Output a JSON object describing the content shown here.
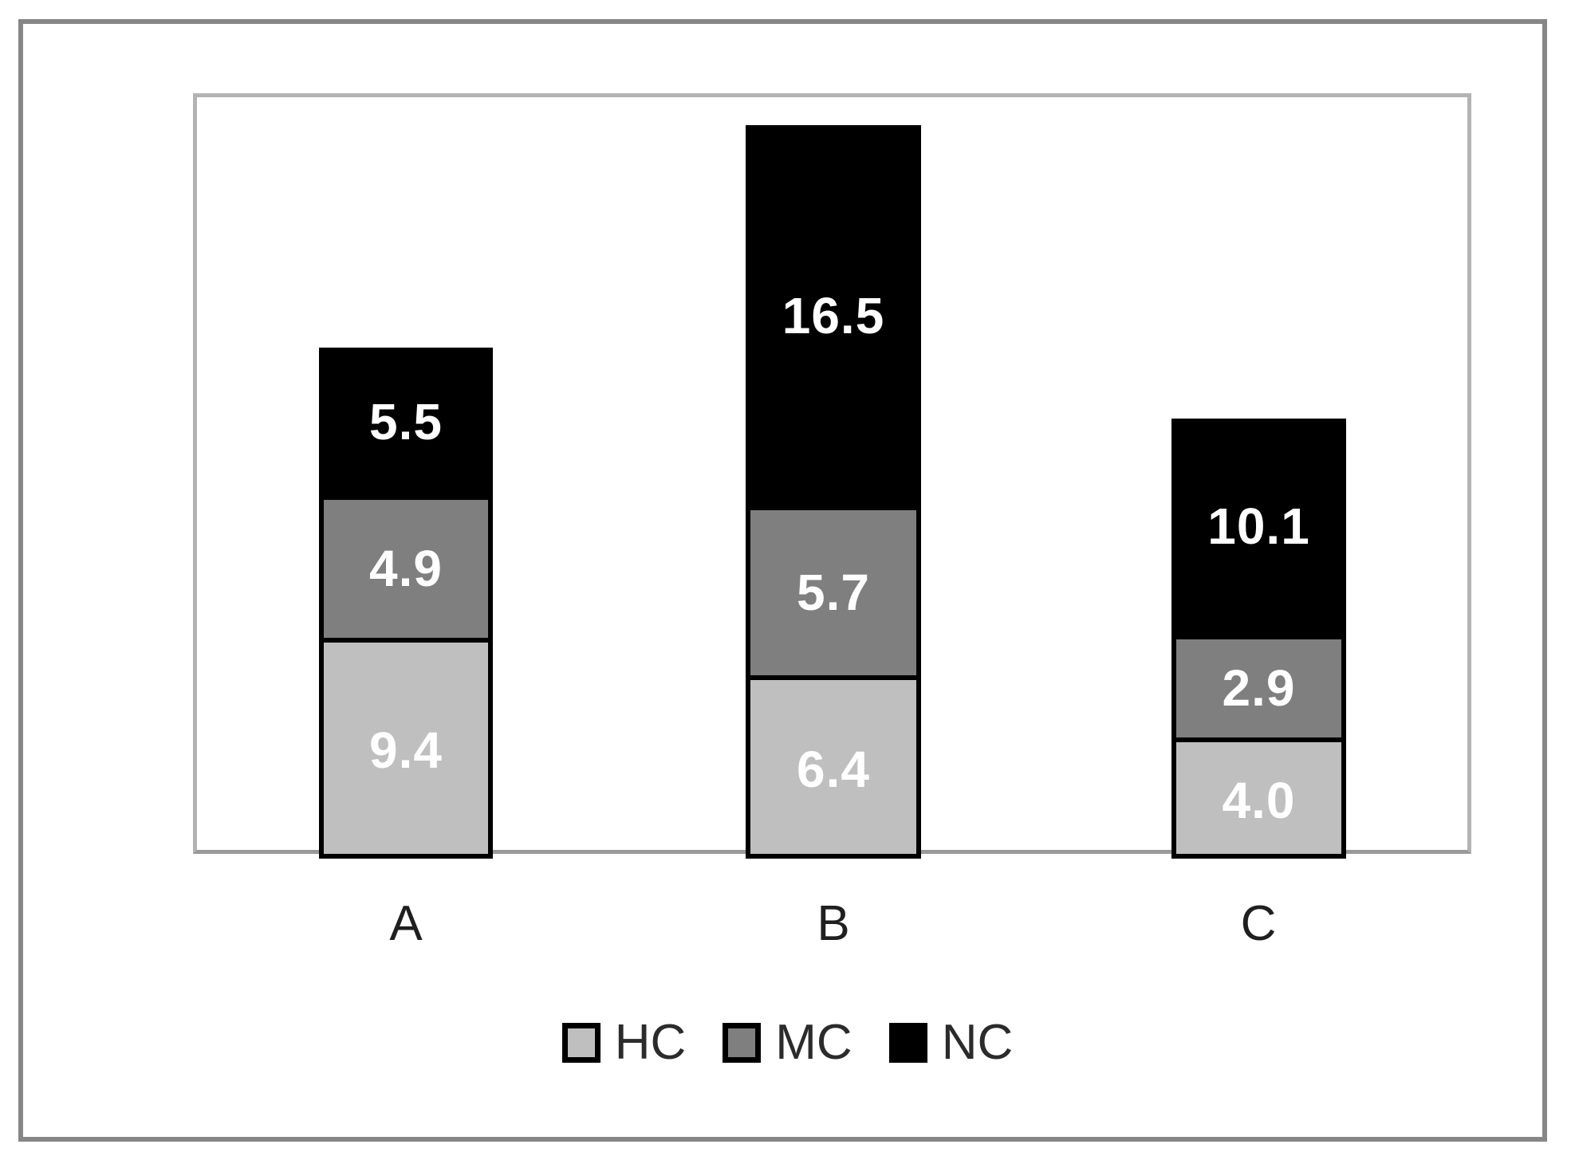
{
  "figure": {
    "background": "#ffffff",
    "outer_border_color": "#868686",
    "plot_border_color": "#b3b3b3",
    "axis_line_color": "#999999"
  },
  "chart_data": {
    "type": "bar",
    "stacked": true,
    "orientation": "vertical",
    "title": "",
    "xlabel": "",
    "ylabel": "",
    "categories": [
      "A",
      "B",
      "C"
    ],
    "series": [
      {
        "name": "HC",
        "color": "#bfbfbf",
        "values": [
          9.4,
          6.4,
          4.0
        ],
        "labels": [
          "9.4",
          "6.4",
          "4.0"
        ]
      },
      {
        "name": "MC",
        "color": "#7f7f7f",
        "values": [
          4.9,
          5.7,
          2.9
        ],
        "labels": [
          "4.9",
          "5.7",
          "2.9"
        ]
      },
      {
        "name": "NC",
        "color": "#000000",
        "values": [
          5.5,
          16.5,
          10.1
        ],
        "labels": [
          "5.5",
          "16.5",
          "10.1"
        ]
      }
    ],
    "totals": [
      19.8,
      28.6,
      17.0
    ],
    "value_labels_position": "center",
    "value_label_color": "#ffffff",
    "segment_border_color": "#000000",
    "ylim": [
      0,
      30
    ],
    "y_axis_ticks_visible": false,
    "gridlines": false,
    "legend": {
      "position": "bottom",
      "entries": [
        "HC",
        "MC",
        "NC"
      ]
    }
  }
}
